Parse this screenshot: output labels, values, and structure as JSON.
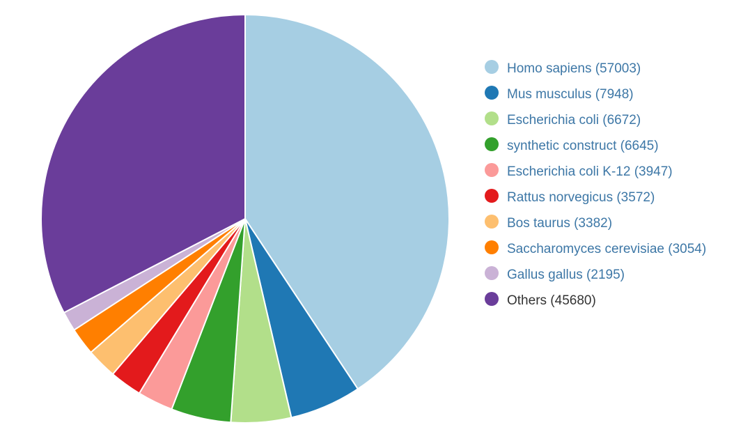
{
  "chart_data": {
    "type": "pie",
    "title": "",
    "slices": [
      {
        "label": "Homo sapiens (57003)",
        "value": 57003,
        "color": "#a6cee3",
        "linked": true
      },
      {
        "label": "Mus musculus (7948)",
        "value": 7948,
        "color": "#1f78b4",
        "linked": true
      },
      {
        "label": "Escherichia coli (6672)",
        "value": 6672,
        "color": "#b2df8a",
        "linked": true
      },
      {
        "label": "synthetic construct (6645)",
        "value": 6645,
        "color": "#33a02c",
        "linked": true
      },
      {
        "label": "Escherichia coli K-12 (3947)",
        "value": 3947,
        "color": "#fb9a99",
        "linked": true
      },
      {
        "label": "Rattus norvegicus (3572)",
        "value": 3572,
        "color": "#e31a1c",
        "linked": true
      },
      {
        "label": "Bos taurus (3382)",
        "value": 3382,
        "color": "#fdbf6f",
        "linked": true
      },
      {
        "label": "Saccharomyces cerevisiae (3054)",
        "value": 3054,
        "color": "#ff7f00",
        "linked": true
      },
      {
        "label": "Gallus gallus (2195)",
        "value": 2195,
        "color": "#cab2d6",
        "linked": true
      },
      {
        "label": "Others (45680)",
        "value": 45680,
        "color": "#6a3d9a",
        "linked": false
      }
    ],
    "legend_position": "right",
    "start_angle": "top",
    "direction": "clockwise"
  }
}
